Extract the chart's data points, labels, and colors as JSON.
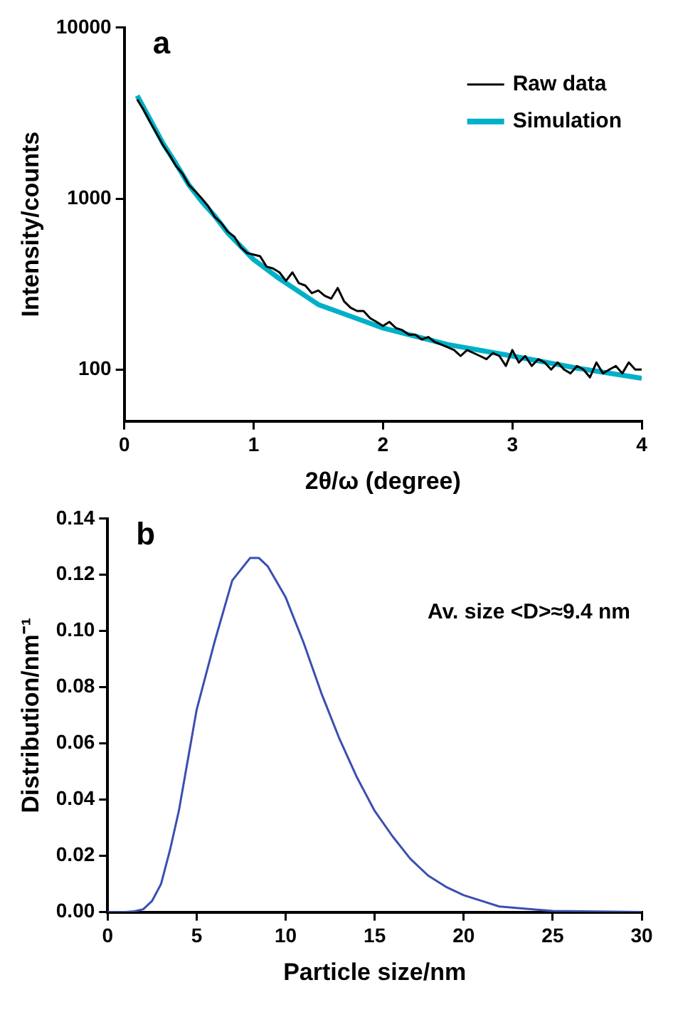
{
  "chart_data": [
    {
      "type": "line",
      "title": "a",
      "xlabel": "2θ/ω (degree)",
      "ylabel": "Intensity/counts",
      "log": "y",
      "xlim": [
        0,
        4
      ],
      "xticks": [
        0,
        1,
        2,
        3,
        4
      ],
      "ylim": [
        50,
        10000
      ],
      "yticks": [
        100,
        1000,
        10000
      ],
      "grid": false,
      "legend": "top right",
      "marker": "none",
      "series": [
        {
          "name": "Raw data",
          "color": "#000000",
          "x": [
            0.1,
            0.15,
            0.2,
            0.25,
            0.3,
            0.35,
            0.4,
            0.45,
            0.5,
            0.55,
            0.6,
            0.65,
            0.7,
            0.75,
            0.8,
            0.85,
            0.9,
            0.95,
            1.0,
            1.05,
            1.1,
            1.15,
            1.2,
            1.25,
            1.3,
            1.35,
            1.4,
            1.45,
            1.5,
            1.55,
            1.6,
            1.65,
            1.7,
            1.75,
            1.8,
            1.85,
            1.9,
            1.95,
            2.0,
            2.05,
            2.1,
            2.15,
            2.2,
            2.25,
            2.3,
            2.35,
            2.4,
            2.45,
            2.5,
            2.55,
            2.6,
            2.65,
            2.7,
            2.75,
            2.8,
            2.85,
            2.9,
            2.95,
            3.0,
            3.05,
            3.1,
            3.15,
            3.2,
            3.25,
            3.3,
            3.35,
            3.4,
            3.45,
            3.5,
            3.55,
            3.6,
            3.65,
            3.7,
            3.75,
            3.8,
            3.85,
            3.9,
            3.95,
            4.0
          ],
          "values": [
            3800,
            3300,
            2800,
            2400,
            2050,
            1800,
            1550,
            1400,
            1200,
            1100,
            1000,
            900,
            780,
            720,
            640,
            600,
            520,
            480,
            470,
            460,
            400,
            390,
            370,
            330,
            370,
            320,
            310,
            280,
            290,
            270,
            260,
            300,
            250,
            230,
            220,
            220,
            200,
            190,
            180,
            190,
            175,
            170,
            160,
            160,
            150,
            155,
            145,
            140,
            135,
            130,
            120,
            130,
            125,
            120,
            115,
            125,
            120,
            105,
            130,
            110,
            120,
            105,
            115,
            110,
            100,
            110,
            100,
            95,
            105,
            100,
            90,
            110,
            95,
            100,
            105,
            95,
            110,
            100,
            100
          ]
        },
        {
          "name": "Simulation",
          "color": "#00b0c8",
          "x": [
            0.1,
            0.2,
            0.3,
            0.4,
            0.5,
            0.6,
            0.7,
            0.8,
            1.0,
            1.2,
            1.5,
            2.0,
            2.5,
            3.0,
            3.5,
            4.0
          ],
          "values": [
            4000,
            2900,
            2100,
            1600,
            1200,
            960,
            790,
            630,
            440,
            340,
            240,
            175,
            140,
            120,
            102,
            89
          ]
        }
      ]
    },
    {
      "type": "line",
      "title": "b",
      "xlabel": "Particle size/nm",
      "ylabel": "Distribution/nm⁻¹",
      "xlim": [
        0,
        30
      ],
      "xticks": [
        0,
        5,
        10,
        15,
        20,
        25,
        30
      ],
      "ylim": [
        0,
        0.14
      ],
      "yticks": [
        {
          "value": 0,
          "label": "0.00"
        },
        {
          "value": 0.02,
          "label": "0.02"
        },
        {
          "value": 0.04,
          "label": "0.04"
        },
        {
          "value": 0.06,
          "label": "0.06"
        },
        {
          "value": 0.08,
          "label": "0.08"
        },
        {
          "value": 0.1,
          "label": "0.10"
        },
        {
          "value": 0.12,
          "label": "0.12"
        },
        {
          "value": 0.14,
          "label": "0.14"
        }
      ],
      "grid": false,
      "legend": false,
      "marker": "none",
      "annotations": [
        "Av. size <D>≈9.4 nm"
      ],
      "series": [
        {
          "color": "#3a4fb0",
          "x": [
            0,
            1,
            1.5,
            2,
            2.5,
            3,
            3.5,
            4,
            4.5,
            5,
            6,
            7,
            8,
            8.5,
            9,
            10,
            11,
            12,
            13,
            14,
            15,
            16,
            17,
            18,
            19,
            20,
            22,
            25,
            30
          ],
          "values": [
            0,
            0,
            0.0003,
            0.001,
            0.004,
            0.01,
            0.022,
            0.036,
            0.054,
            0.072,
            0.096,
            0.118,
            0.126,
            0.126,
            0.123,
            0.112,
            0.096,
            0.078,
            0.062,
            0.048,
            0.036,
            0.027,
            0.019,
            0.013,
            0.009,
            0.006,
            0.002,
            0.0004,
            0
          ]
        }
      ]
    }
  ]
}
